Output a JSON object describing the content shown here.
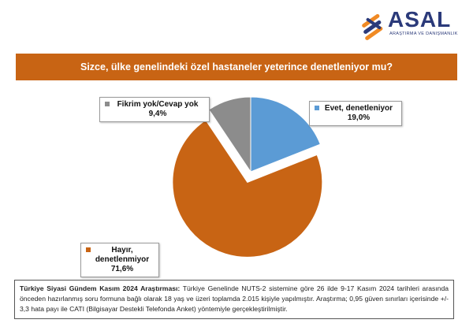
{
  "brand": {
    "name": "ASAL",
    "tagline": "ARAŞTIRMA VE DANIŞMANLIK"
  },
  "chart_data": {
    "type": "pie",
    "title": "Sizce, ülke genelindeki özel hastaneler yeterince denetleniyor mu?",
    "slices": [
      {
        "label": "Evet, denetleniyor",
        "value": 19.0,
        "value_text": "19,0%",
        "color": "#5b9bd5",
        "exploded": false
      },
      {
        "label": "Hayır, denetlenmiyor",
        "value": 71.6,
        "value_text": "71,6%",
        "color": "#c86414",
        "exploded": true
      },
      {
        "label": "Fikrim yok/Cevap yok",
        "value": 9.4,
        "value_text": "9,4%",
        "color": "#8c8c8c",
        "exploded": false
      }
    ]
  },
  "labels": {
    "evet_label": "Evet, denetleniyor",
    "evet_value": "19,0%",
    "hayir_label_1": "Hayır,",
    "hayir_label_2": "denetlenmiyor",
    "hayir_value": "71,6%",
    "fikrim_label": "Fikrim yok/Cevap yok",
    "fikrim_value": "9,4%"
  },
  "footer": {
    "heading": "Türkiye Siyasi Gündem Kasım 2024 Araştırması:",
    "text": " Türkiye Genelinde NUTS-2 sistemine göre 26 ilde 9-17 Kasım 2024 tarihleri arasında önceden hazırlanmış soru formuna bağlı olarak 18 yaş ve üzeri toplamda 2.015 kişiyle yapılmıştır. Araştırma; 0,95 güven sınırları içerisinde +/- 3,3 hata payı ile CATI (Bilgisayar Destekli Telefonda Anket) yöntemiyle gerçekleştirilmiştir."
  }
}
